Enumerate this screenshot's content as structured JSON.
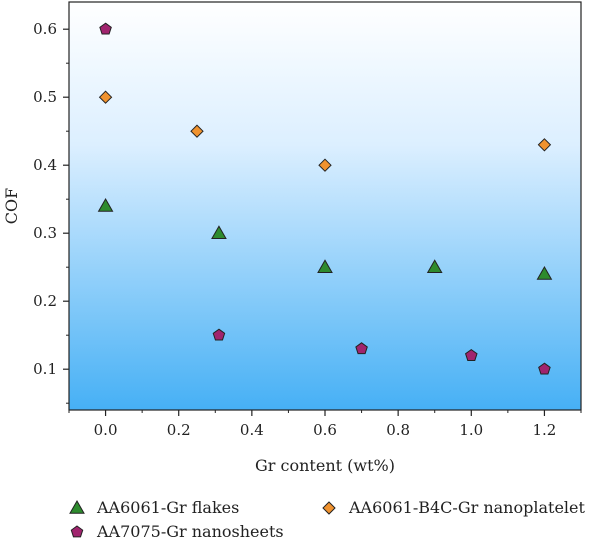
{
  "chart_data": {
    "type": "scatter",
    "xlabel": "Gr content (wt%)",
    "ylabel": "COF",
    "xlim": [
      -0.1,
      1.3
    ],
    "ylim": [
      0.04,
      0.64
    ],
    "xticks": [
      0.0,
      0.2,
      0.4,
      0.6,
      0.8,
      1.0,
      1.2
    ],
    "xtick_labels": [
      "0.0",
      "0.2",
      "0.4",
      "0.6",
      "0.8",
      "1.0",
      "1.2"
    ],
    "yticks": [
      0.1,
      0.2,
      0.3,
      0.4,
      0.5,
      0.6
    ],
    "ytick_labels": [
      "0.1",
      "0.2",
      "0.3",
      "0.4",
      "0.5",
      "0.6"
    ],
    "grid": false,
    "legend_position": "bottom",
    "background": "gradient-white-to-blue",
    "series": [
      {
        "name": "AA6061-Gr flakes",
        "marker": "triangle",
        "color": "#2e8b2e",
        "points": [
          {
            "x": 0.0,
            "y": 0.34
          },
          {
            "x": 0.31,
            "y": 0.3
          },
          {
            "x": 0.6,
            "y": 0.25
          },
          {
            "x": 0.9,
            "y": 0.25
          },
          {
            "x": 1.2,
            "y": 0.24
          }
        ]
      },
      {
        "name": "AA6061-B4C-Gr nanoplatelet",
        "marker": "diamond",
        "color": "#f0922e",
        "points": [
          {
            "x": 0.0,
            "y": 0.5
          },
          {
            "x": 0.25,
            "y": 0.45
          },
          {
            "x": 0.6,
            "y": 0.4
          },
          {
            "x": 1.2,
            "y": 0.43
          }
        ]
      },
      {
        "name": "AA7075-Gr nanosheets",
        "marker": "pentagon",
        "color": "#a0246e",
        "points": [
          {
            "x": 0.0,
            "y": 0.6
          },
          {
            "x": 0.31,
            "y": 0.15
          },
          {
            "x": 0.7,
            "y": 0.13
          },
          {
            "x": 1.0,
            "y": 0.12
          },
          {
            "x": 1.2,
            "y": 0.1
          }
        ]
      }
    ]
  }
}
